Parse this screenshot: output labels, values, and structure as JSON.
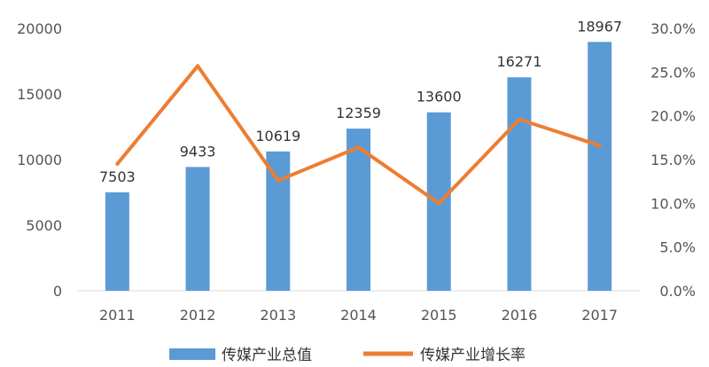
{
  "chart_data": {
    "type": "bar",
    "categories": [
      "2011",
      "2012",
      "2013",
      "2014",
      "2015",
      "2016",
      "2017"
    ],
    "series": [
      {
        "name": "传媒产业总值",
        "type": "bar",
        "axis": "left",
        "color": "#5B9BD5",
        "values": [
          7503,
          9433,
          10619,
          12359,
          13600,
          16271,
          18967
        ],
        "data_labels": [
          "7503",
          "9433",
          "10619",
          "12359",
          "13600",
          "16271",
          "18967"
        ]
      },
      {
        "name": "传媒产业增长率",
        "type": "line",
        "axis": "right",
        "color": "#ED7D31",
        "values": [
          0.145,
          0.257,
          0.126,
          0.164,
          0.1,
          0.196,
          0.166
        ]
      }
    ],
    "ylim": [
      0,
      20000
    ],
    "yticks": [
      0,
      5000,
      10000,
      15000,
      20000
    ],
    "ytick_labels": [
      "0",
      "5000",
      "10000",
      "15000",
      "20000"
    ],
    "y2lim": [
      0,
      0.3
    ],
    "y2ticks": [
      0,
      0.05,
      0.1,
      0.15,
      0.2,
      0.25,
      0.3
    ],
    "y2tick_labels": [
      "0.0%",
      "5.0%",
      "10.0%",
      "15.0%",
      "20.0%",
      "25.0%",
      "30.0%"
    ],
    "grid": false,
    "legend_position": "bottom"
  }
}
